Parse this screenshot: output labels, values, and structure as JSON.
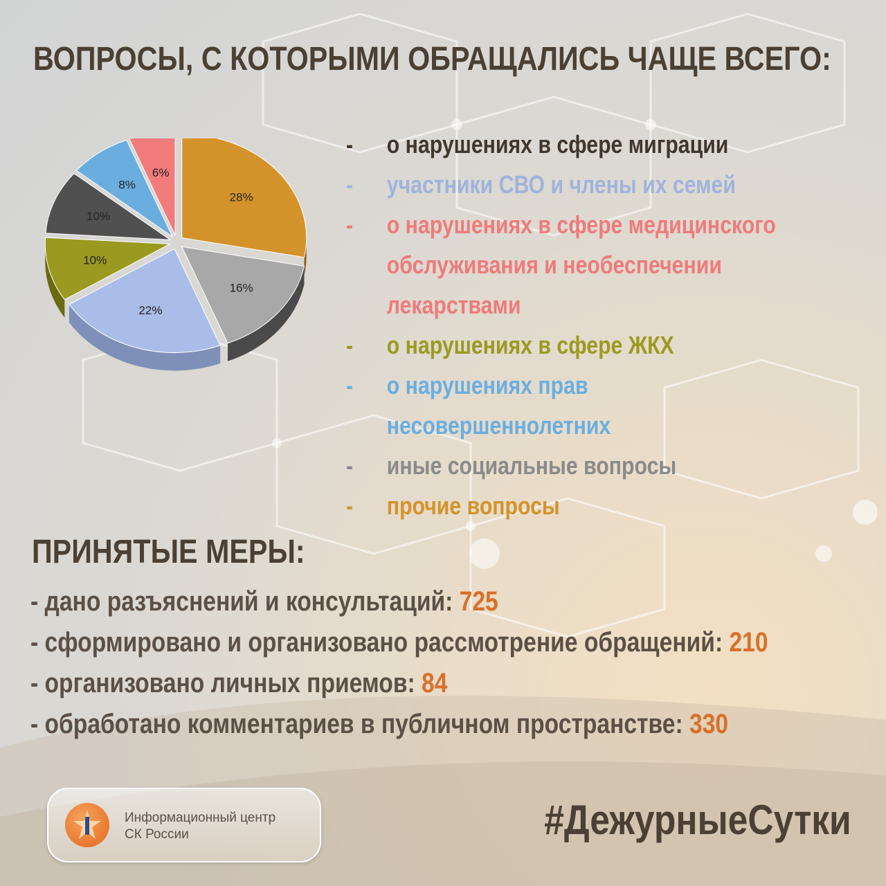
{
  "title": "ВОПРОСЫ, С КОТОРЫМИ ОБРАЩАЛИСЬ ЧАЩЕ ВСЕГО:",
  "legend": [
    {
      "dash": "-",
      "text": "о нарушениях в сфере миграции",
      "color": "#3f372d"
    },
    {
      "dash": "-",
      "text": "участники СВО и члены их семей",
      "color": "#9fb3dc"
    },
    {
      "dash": "-",
      "text": "о нарушениях в сфере медицинского",
      "color": "#ee7b7b"
    },
    {
      "dash": "",
      "text": "обслуживания и необеспечении",
      "color": "#ee7b7b"
    },
    {
      "dash": "",
      "text": "лекарствами",
      "color": "#ee7b7b"
    },
    {
      "dash": "-",
      "text": "о нарушениях в сфере ЖКХ",
      "color": "#9a9a21"
    },
    {
      "dash": "-",
      "text": "о нарушениях прав",
      "color": "#6aaee0"
    },
    {
      "dash": "",
      "text": "несовершеннолетних",
      "color": "#6aaee0"
    },
    {
      "dash": "-",
      "text": "иные социальные вопросы",
      "color": "#8a8a8a"
    },
    {
      "dash": "-",
      "text": "прочие вопросы",
      "color": "#d4932a"
    }
  ],
  "chart_data": {
    "type": "pie",
    "title": "",
    "slices": [
      {
        "label": "28%",
        "value": 28,
        "color": "#d4932a",
        "dark": "#8a5c10"
      },
      {
        "label": "16%",
        "value": 16,
        "color": "#a8a8a8",
        "dark": "#4a4a4a"
      },
      {
        "label": "22%",
        "value": 22,
        "color": "#a9bde8",
        "dark": "#7f90b8"
      },
      {
        "label": "10%",
        "value": 10,
        "color": "#9a9a21",
        "dark": "#6a6a10"
      },
      {
        "label": "10%",
        "value": 10,
        "color": "#505050",
        "dark": "#2a2a2a"
      },
      {
        "label": "8%",
        "value": 8,
        "color": "#6aaee0",
        "dark": "#3d7aa8"
      },
      {
        "label": "6%",
        "value": 6,
        "color": "#f27c7c",
        "dark": "#b85050"
      }
    ]
  },
  "measures": {
    "title": "ПРИНЯТЫЕ МЕРЫ:",
    "rows": [
      {
        "text": "- дано разъяснений и консультаций: ",
        "value": "725"
      },
      {
        "text": "- сформировано и организовано рассмотрение обращений: ",
        "value": "210"
      },
      {
        "text": "- организовано личных приемов: ",
        "value": "84"
      },
      {
        "text": "- обработано комментариев в публичном пространстве: ",
        "value": "330"
      }
    ]
  },
  "badge": {
    "line1": "Информационный центр",
    "line2": "СК России",
    "emblem": "investigative-committee-emblem-icon"
  },
  "hashtag": "#ДежурныеСутки"
}
